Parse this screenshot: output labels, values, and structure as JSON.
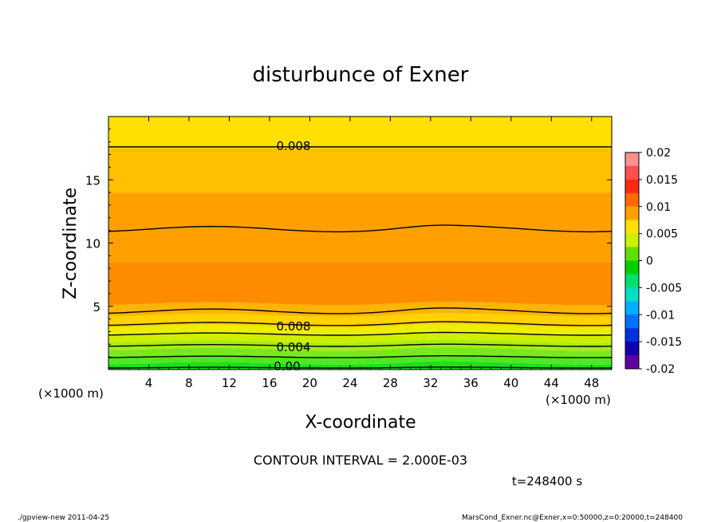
{
  "chart_data": {
    "type": "heatmap",
    "title": "disturbunce of Exner",
    "xlabel": "X-coordinate",
    "ylabel": "Z-coordinate",
    "x_unit": "(×1000 m)",
    "y_unit": "(×1000 m)",
    "xlim": [
      0,
      50
    ],
    "ylim": [
      0,
      20
    ],
    "x_ticks": [
      4,
      8,
      12,
      16,
      20,
      24,
      28,
      32,
      36,
      40,
      44,
      48
    ],
    "y_ticks": [
      5,
      10,
      15
    ],
    "contour_interval_text": "CONTOUR INTERVAL = 2.000E-03",
    "time_text": "t=248400 s",
    "contour_labels": [
      "0.008",
      "0.008",
      "0.004",
      "0.00"
    ],
    "colorbar": {
      "ticks": [
        "0.02",
        "0.015",
        "0.01",
        "0.005",
        "0",
        "-0.005",
        "-0.01",
        "-0.015",
        "-0.02"
      ],
      "range": [
        -0.02,
        0.02
      ],
      "colors": [
        "#ff9090",
        "#ff5050",
        "#ff2a10",
        "#ff6a00",
        "#ffa000",
        "#ffe000",
        "#c8f000",
        "#60e000",
        "#00d000",
        "#00e070",
        "#00e0c0",
        "#00b0ff",
        "#0070ff",
        "#0030e0",
        "#1000b0",
        "#6000a0"
      ]
    },
    "bands_fill_by_z": [
      {
        "z": [
          0.0,
          0.5
        ],
        "value": 0.001,
        "color": "#1ee01e"
      },
      {
        "z": [
          0.5,
          1.0
        ],
        "value": 0.002,
        "color": "#50e81e"
      },
      {
        "z": [
          1.0,
          1.6
        ],
        "value": 0.003,
        "color": "#7ae81e"
      },
      {
        "z": [
          1.6,
          2.2
        ],
        "value": 0.004,
        "color": "#a6ec10"
      },
      {
        "z": [
          2.2,
          2.8
        ],
        "value": 0.005,
        "color": "#cfef00"
      },
      {
        "z": [
          2.8,
          3.4
        ],
        "value": 0.006,
        "color": "#ecef00"
      },
      {
        "z": [
          3.4,
          4.3
        ],
        "value": 0.0075,
        "color": "#ffd200"
      },
      {
        "z": [
          4.3,
          5.2
        ],
        "value": 0.009,
        "color": "#ffb400"
      },
      {
        "z": [
          5.2,
          8.5
        ],
        "value": 0.0105,
        "color": "#ff8c00"
      },
      {
        "z": [
          8.5,
          14.0
        ],
        "value": 0.0095,
        "color": "#ffa000"
      },
      {
        "z": [
          14.0,
          17.5
        ],
        "value": 0.0085,
        "color": "#ffc000"
      },
      {
        "z": [
          17.5,
          20.0
        ],
        "value": 0.007,
        "color": "#ffe000"
      }
    ],
    "contours": [
      {
        "level": 0.008,
        "z_base": 17.6,
        "amp": 0.0
      },
      {
        "level": 0.01,
        "z_base": 11.1,
        "amp": 0.35
      },
      {
        "level": 0.01,
        "z_base": 4.6,
        "amp": 0.3
      },
      {
        "level": 0.008,
        "z_base": 3.6,
        "amp": 0.2
      },
      {
        "level": 0.006,
        "z_base": 2.8,
        "amp": 0.15
      },
      {
        "level": 0.004,
        "z_base": 1.9,
        "amp": 0.12
      },
      {
        "level": 0.002,
        "z_base": 1.0,
        "amp": 0.1
      },
      {
        "level": 0.0,
        "z_base": 0.15,
        "amp": 0.05
      }
    ]
  },
  "footer": {
    "left": "./gpview-new  2011-04-25",
    "right": "MarsCond_Exner.nc@Exner,x=0:50000,z=0:20000,t=248400"
  }
}
